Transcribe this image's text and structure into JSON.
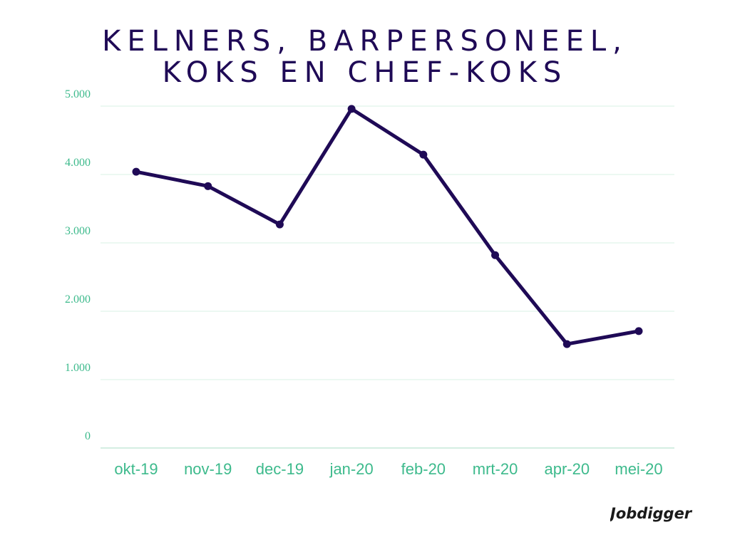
{
  "title_lines": [
    "KELNERS, BARPERSONEEL,",
    "KOKS EN CHEF-KOKS"
  ],
  "logo_text": "Jobdigger",
  "chart_data": {
    "type": "line",
    "title": "KELNERS, BARPERSONEEL, KOKS EN CHEF-KOKS",
    "xlabel": "",
    "ylabel": "",
    "categories": [
      "okt-19",
      "nov-19",
      "dec-19",
      "jan-20",
      "feb-20",
      "mrt-20",
      "apr-20",
      "mei-20"
    ],
    "series": [
      {
        "values": [
          4040,
          3830,
          3270,
          4960,
          4290,
          2820,
          1520,
          1710
        ]
      }
    ],
    "ylim": [
      0,
      5000
    ],
    "yticks": [
      0,
      1000,
      2000,
      3000,
      4000,
      5000
    ],
    "ytick_labels": [
      "0",
      "1.000",
      "2.000",
      "3.000",
      "4.000",
      "5.000"
    ],
    "grid": true,
    "legend": "none",
    "colors": {
      "line": "#1f0a56",
      "grid": "#d9f0e6",
      "axis_text": "#3dba8c",
      "title": "#1f0a56"
    }
  }
}
